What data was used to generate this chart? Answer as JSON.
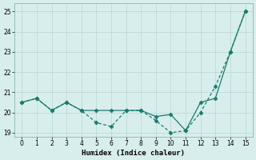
{
  "line1_x": [
    0,
    1,
    2,
    3,
    4,
    5,
    6,
    7,
    8,
    9,
    10,
    11,
    12,
    13,
    14,
    15
  ],
  "line1_y": [
    20.5,
    20.7,
    20.1,
    20.5,
    20.1,
    20.1,
    20.1,
    20.1,
    20.1,
    19.8,
    19.9,
    19.1,
    20.5,
    20.7,
    23.0,
    25.0
  ],
  "line2_x": [
    0,
    1,
    2,
    3,
    4,
    5,
    6,
    7,
    8,
    9,
    10,
    11,
    12,
    13,
    14,
    15
  ],
  "line2_y": [
    20.5,
    20.7,
    20.1,
    20.5,
    20.1,
    19.5,
    19.3,
    20.1,
    20.1,
    19.6,
    19.0,
    19.1,
    20.0,
    21.3,
    23.0,
    25.0
  ],
  "color": "#1a7a6e",
  "xlabel": "Humidex (Indice chaleur)",
  "xlim": [
    -0.5,
    15.5
  ],
  "ylim": [
    18.8,
    25.4
  ],
  "yticks": [
    19,
    20,
    21,
    22,
    23,
    24,
    25
  ],
  "xticks": [
    0,
    1,
    2,
    3,
    4,
    5,
    6,
    7,
    8,
    9,
    10,
    11,
    12,
    13,
    14,
    15
  ],
  "bg_color": "#d8eeec",
  "grid_color": "#b5d8d4"
}
